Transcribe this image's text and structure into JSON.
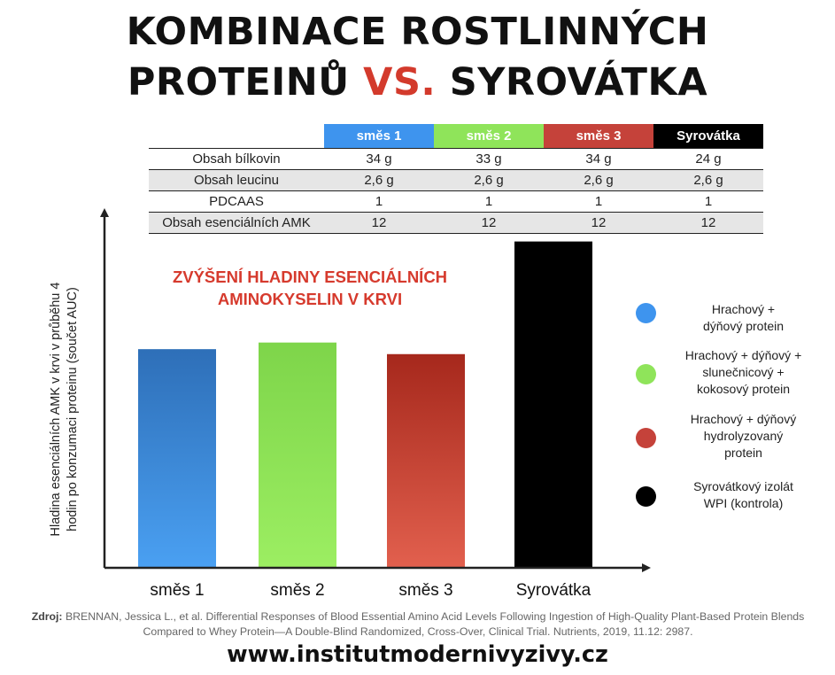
{
  "title": {
    "line1": "KOMBINACE ROSTLINNÝCH",
    "line2_pre": "PROTEINŮ",
    "line2_vs": "VS.",
    "line2_post": "SYROVÁTKA"
  },
  "table": {
    "columns": [
      {
        "label": "směs 1",
        "color": "#3e94ee"
      },
      {
        "label": "směs 2",
        "color": "#8fe45a"
      },
      {
        "label": "směs 3",
        "color": "#c5423a"
      },
      {
        "label": "Syrovátka",
        "color": "#000000"
      }
    ],
    "rows": [
      {
        "label": "Obsah bílkovin",
        "values": [
          "34 g",
          "33 g",
          "34 g",
          "24 g"
        ]
      },
      {
        "label": "Obsah leucinu",
        "values": [
          "2,6 g",
          "2,6 g",
          "2,6 g",
          "2,6 g"
        ]
      },
      {
        "label": "PDCAAS",
        "values": [
          "1",
          "1",
          "1",
          "1"
        ]
      },
      {
        "label": "Obsah esenciálních AMK",
        "values": [
          "12",
          "12",
          "12",
          "12"
        ]
      }
    ]
  },
  "annotation": {
    "line1": "ZVÝŠENÍ HLADINY ESENCIÁLNÍCH",
    "line2": "AMINOKYSELIN V KRVI"
  },
  "legend": [
    {
      "text": "Hrachový +\ndýňový protein",
      "color": "#3e94ee"
    },
    {
      "text": "Hrachový + dýňový +\nslunečnicový +\nkokosový protein",
      "color": "#8fe45a"
    },
    {
      "text": "Hrachový + dýňový\nhydrolyzovaný\nprotein",
      "color": "#c5423a"
    },
    {
      "text": "Syrovátkový izolát\nWPI (kontrola)",
      "color": "#000000"
    }
  ],
  "chart_data": {
    "type": "bar",
    "categories": [
      "směs 1",
      "směs 2",
      "směs 3",
      "Syrovátka"
    ],
    "values": [
      0.66,
      0.68,
      0.645,
      0.985
    ],
    "ylim": [
      0,
      1
    ],
    "ylabel_line1": "Hladina esenciálních AMK v krvi v průběhu 4",
    "ylabel_line2": "hodin po konzumaci proteinu  (součet AUC)",
    "xlabel": "",
    "colors": [
      "#3e94ee",
      "#8fe45a",
      "#c5423a",
      "#000000"
    ],
    "grid": false
  },
  "source": {
    "label": "Zdroj:",
    "text": "BRENNAN, Jessica L., et al. Differential Responses of Blood Essential Amino Acid Levels Following Ingestion of High-Quality Plant-Based Protein Blends Compared to Whey Protein—A Double-Blind Randomized, Cross-Over, Clinical Trial. Nutrients, 2019, 11.12: 2987."
  },
  "url": "www.institutmodernivyzivy.cz"
}
